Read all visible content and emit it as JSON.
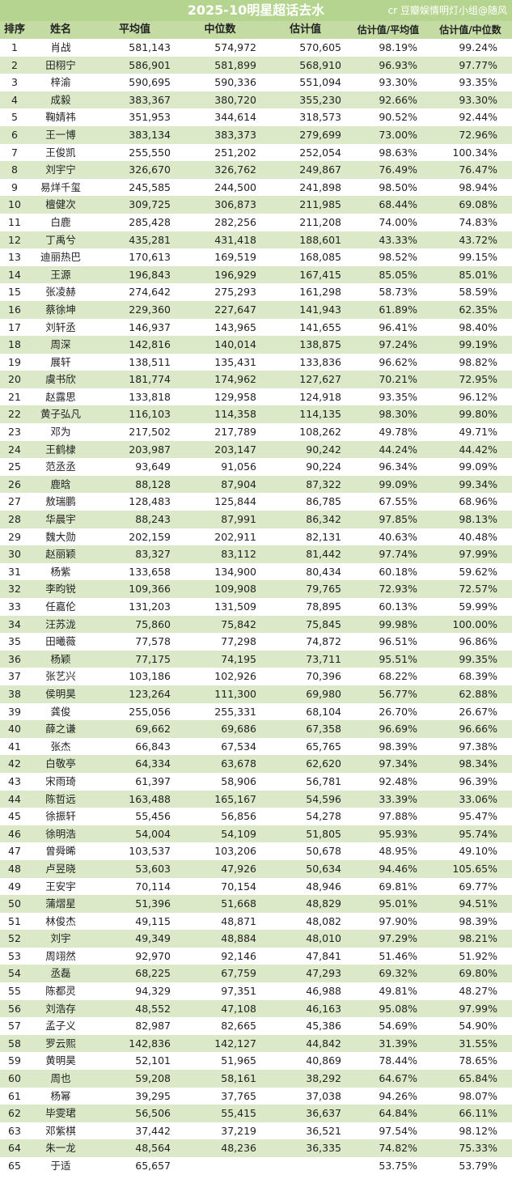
{
  "title": "2025-10明星超话去水",
  "watermark": "cr 豆瓣娱情明灯小组@随风",
  "colors": {
    "header": "#b5d48f",
    "stripe": "#dce9c8"
  },
  "columns": [
    "排序",
    "姓名",
    "平均值",
    "中位数",
    "估计值",
    "估计值/平均值",
    "估计值/中位数"
  ],
  "rows": [
    [
      "1",
      "肖战",
      "581,143",
      "574,972",
      "570,605",
      "98.19%",
      "99.24%"
    ],
    [
      "2",
      "田栩宁",
      "586,901",
      "581,899",
      "568,910",
      "96.93%",
      "97.77%"
    ],
    [
      "3",
      "梓渝",
      "590,695",
      "590,336",
      "551,094",
      "93.30%",
      "93.35%"
    ],
    [
      "4",
      "成毅",
      "383,367",
      "380,720",
      "355,230",
      "92.66%",
      "93.30%"
    ],
    [
      "5",
      "鞠婧祎",
      "351,953",
      "344,614",
      "318,573",
      "90.52%",
      "92.44%"
    ],
    [
      "6",
      "王一博",
      "383,134",
      "383,373",
      "279,699",
      "73.00%",
      "72.96%"
    ],
    [
      "7",
      "王俊凯",
      "255,550",
      "251,202",
      "252,054",
      "98.63%",
      "100.34%"
    ],
    [
      "8",
      "刘宇宁",
      "326,670",
      "326,762",
      "249,867",
      "76.49%",
      "76.47%"
    ],
    [
      "9",
      "易烊千玺",
      "245,585",
      "244,500",
      "241,898",
      "98.50%",
      "98.94%"
    ],
    [
      "10",
      "檀健次",
      "309,725",
      "306,873",
      "211,985",
      "68.44%",
      "69.08%"
    ],
    [
      "11",
      "白鹿",
      "285,428",
      "282,256",
      "211,208",
      "74.00%",
      "74.83%"
    ],
    [
      "12",
      "丁禹兮",
      "435,281",
      "431,418",
      "188,601",
      "43.33%",
      "43.72%"
    ],
    [
      "13",
      "迪丽热巴",
      "170,613",
      "169,519",
      "168,085",
      "98.52%",
      "99.15%"
    ],
    [
      "14",
      "王源",
      "196,843",
      "196,929",
      "167,415",
      "85.05%",
      "85.01%"
    ],
    [
      "15",
      "张凌赫",
      "274,642",
      "275,293",
      "161,298",
      "58.73%",
      "58.59%"
    ],
    [
      "16",
      "蔡徐坤",
      "229,360",
      "227,647",
      "141,943",
      "61.89%",
      "62.35%"
    ],
    [
      "17",
      "刘轩丞",
      "146,937",
      "143,965",
      "141,655",
      "96.41%",
      "98.40%"
    ],
    [
      "18",
      "周深",
      "142,816",
      "140,014",
      "138,875",
      "97.24%",
      "99.19%"
    ],
    [
      "19",
      "展轩",
      "138,511",
      "135,431",
      "133,836",
      "96.62%",
      "98.82%"
    ],
    [
      "20",
      "虞书欣",
      "181,774",
      "174,962",
      "127,627",
      "70.21%",
      "72.95%"
    ],
    [
      "21",
      "赵露思",
      "133,818",
      "129,958",
      "124,918",
      "93.35%",
      "96.12%"
    ],
    [
      "22",
      "黄子弘凡",
      "116,103",
      "114,358",
      "114,135",
      "98.30%",
      "99.80%"
    ],
    [
      "23",
      "邓为",
      "217,502",
      "217,789",
      "108,262",
      "49.78%",
      "49.71%"
    ],
    [
      "24",
      "王鹤棣",
      "203,987",
      "203,147",
      "90,242",
      "44.24%",
      "44.42%"
    ],
    [
      "25",
      "范丞丞",
      "93,649",
      "91,056",
      "90,224",
      "96.34%",
      "99.09%"
    ],
    [
      "26",
      "鹿晗",
      "88,128",
      "87,904",
      "87,322",
      "99.09%",
      "99.34%"
    ],
    [
      "27",
      "敖瑞鹏",
      "128,483",
      "125,844",
      "86,785",
      "67.55%",
      "68.96%"
    ],
    [
      "28",
      "华晨宇",
      "88,243",
      "87,991",
      "86,342",
      "97.85%",
      "98.13%"
    ],
    [
      "29",
      "魏大勋",
      "202,159",
      "202,911",
      "82,131",
      "40.63%",
      "40.48%"
    ],
    [
      "30",
      "赵丽颖",
      "83,327",
      "83,112",
      "81,442",
      "97.74%",
      "97.99%"
    ],
    [
      "31",
      "杨紫",
      "133,658",
      "134,900",
      "80,434",
      "60.18%",
      "59.62%"
    ],
    [
      "32",
      "李昀锐",
      "109,366",
      "109,908",
      "79,765",
      "72.93%",
      "72.57%"
    ],
    [
      "33",
      "任嘉伦",
      "131,203",
      "131,509",
      "78,895",
      "60.13%",
      "59.99%"
    ],
    [
      "34",
      "汪苏泷",
      "75,860",
      "75,842",
      "75,845",
      "99.98%",
      "100.00%"
    ],
    [
      "35",
      "田曦薇",
      "77,578",
      "77,298",
      "74,872",
      "96.51%",
      "96.86%"
    ],
    [
      "36",
      "杨颖",
      "77,175",
      "74,195",
      "73,711",
      "95.51%",
      "99.35%"
    ],
    [
      "37",
      "张艺兴",
      "103,186",
      "102,926",
      "70,396",
      "68.22%",
      "68.39%"
    ],
    [
      "38",
      "侯明昊",
      "123,264",
      "111,300",
      "69,980",
      "56.77%",
      "62.88%"
    ],
    [
      "39",
      "龚俊",
      "255,056",
      "255,331",
      "68,104",
      "26.70%",
      "26.67%"
    ],
    [
      "40",
      "薛之谦",
      "69,662",
      "69,686",
      "67,358",
      "96.69%",
      "96.66%"
    ],
    [
      "41",
      "张杰",
      "66,843",
      "67,534",
      "65,765",
      "98.39%",
      "97.38%"
    ],
    [
      "42",
      "白敬亭",
      "64,334",
      "63,678",
      "62,620",
      "97.34%",
      "98.34%"
    ],
    [
      "43",
      "宋雨琦",
      "61,397",
      "58,906",
      "56,781",
      "92.48%",
      "96.39%"
    ],
    [
      "44",
      "陈哲远",
      "163,488",
      "165,167",
      "54,596",
      "33.39%",
      "33.06%"
    ],
    [
      "45",
      "徐振轩",
      "55,456",
      "56,856",
      "54,278",
      "97.88%",
      "95.47%"
    ],
    [
      "46",
      "徐明浩",
      "54,004",
      "54,109",
      "51,805",
      "95.93%",
      "95.74%"
    ],
    [
      "47",
      "曾舜晞",
      "103,537",
      "103,206",
      "50,678",
      "48.95%",
      "49.10%"
    ],
    [
      "48",
      "卢昱晓",
      "53,603",
      "47,926",
      "50,634",
      "94.46%",
      "105.65%"
    ],
    [
      "49",
      "王安宇",
      "70,114",
      "70,154",
      "48,946",
      "69.81%",
      "69.77%"
    ],
    [
      "50",
      "蒲熠星",
      "51,396",
      "51,668",
      "48,829",
      "95.01%",
      "94.51%"
    ],
    [
      "51",
      "林俊杰",
      "49,115",
      "48,871",
      "48,082",
      "97.90%",
      "98.39%"
    ],
    [
      "52",
      "刘宇",
      "49,349",
      "48,884",
      "48,010",
      "97.29%",
      "98.21%"
    ],
    [
      "53",
      "周翊然",
      "92,970",
      "92,146",
      "47,841",
      "51.46%",
      "51.92%"
    ],
    [
      "54",
      "丞磊",
      "68,225",
      "67,759",
      "47,293",
      "69.32%",
      "69.80%"
    ],
    [
      "55",
      "陈都灵",
      "94,329",
      "97,351",
      "46,988",
      "49.81%",
      "48.27%"
    ],
    [
      "56",
      "刘浩存",
      "48,552",
      "47,108",
      "46,163",
      "95.08%",
      "97.99%"
    ],
    [
      "57",
      "孟子义",
      "82,987",
      "82,665",
      "45,386",
      "54.69%",
      "54.90%"
    ],
    [
      "58",
      "罗云熙",
      "142,836",
      "142,127",
      "44,842",
      "31.39%",
      "31.55%"
    ],
    [
      "59",
      "黄明昊",
      "52,101",
      "51,965",
      "40,869",
      "78.44%",
      "78.65%"
    ],
    [
      "60",
      "周也",
      "59,208",
      "58,161",
      "38,292",
      "64.67%",
      "65.84%"
    ],
    [
      "61",
      "杨幂",
      "39,295",
      "37,765",
      "37,038",
      "94.26%",
      "98.07%"
    ],
    [
      "62",
      "毕雯珺",
      "56,506",
      "55,415",
      "36,637",
      "64.84%",
      "66.11%"
    ],
    [
      "63",
      "邓紫棋",
      "37,442",
      "37,219",
      "36,521",
      "97.54%",
      "98.12%"
    ],
    [
      "64",
      "朱一龙",
      "48,564",
      "48,236",
      "36,335",
      "74.82%",
      "75.33%"
    ],
    [
      "65",
      "于适",
      "65,657",
      "",
      "",
      "53.75%",
      "53.79%"
    ]
  ]
}
